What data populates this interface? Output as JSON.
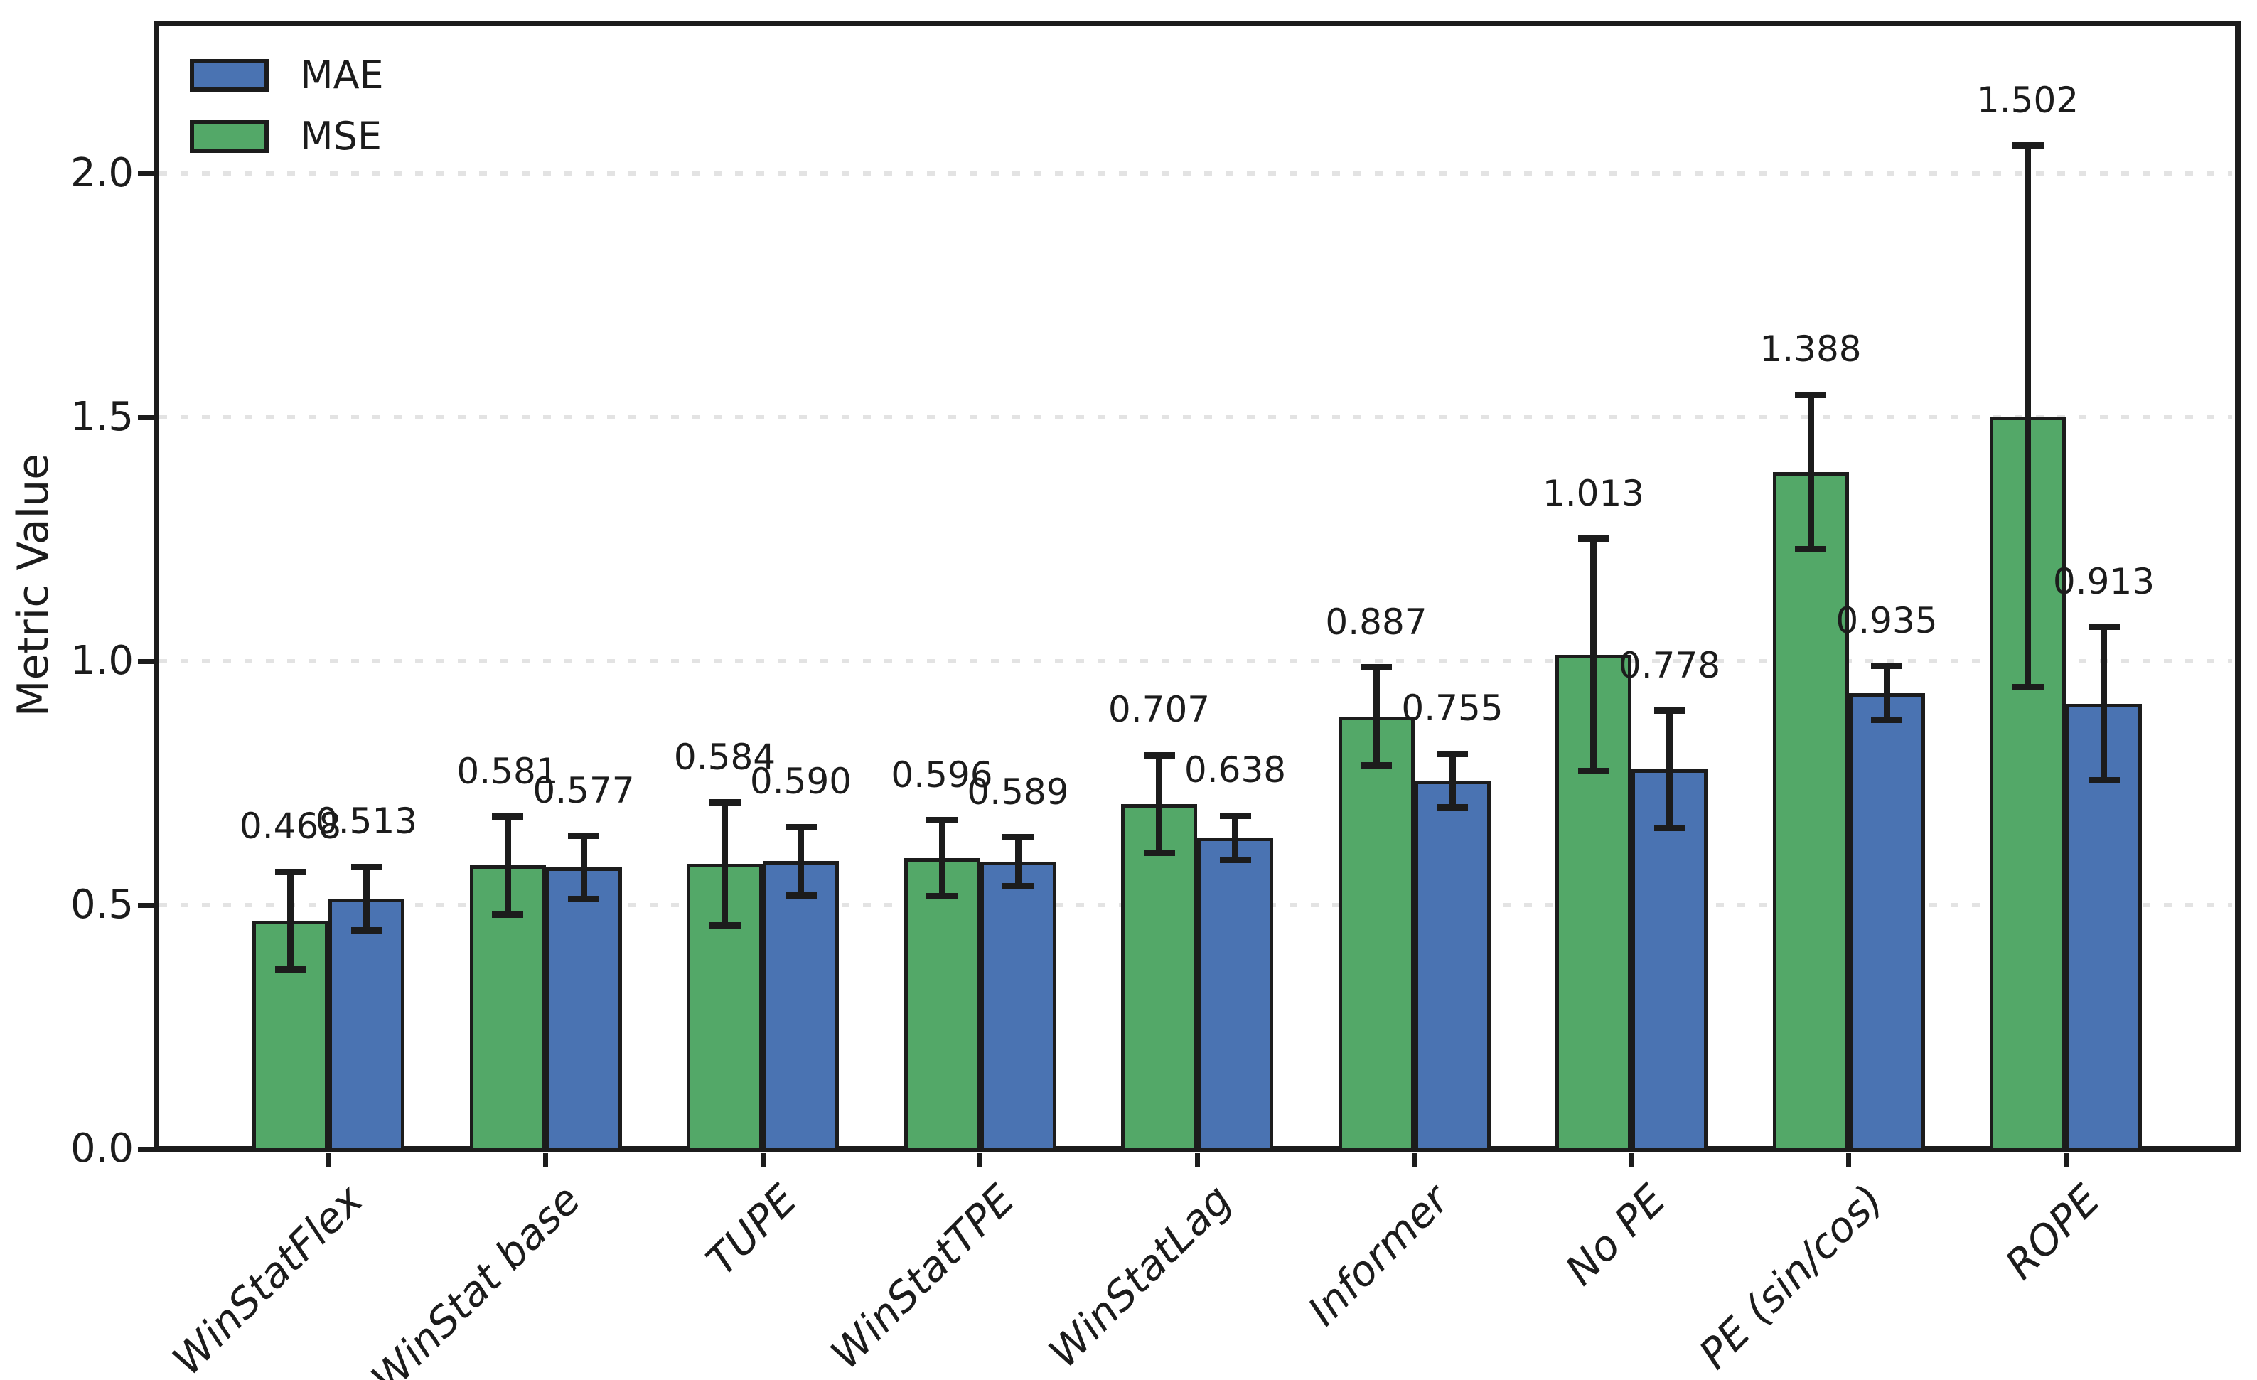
{
  "figure": {
    "y_axis_title": "Metric Value",
    "legend": [
      {
        "label": "MAE",
        "color": "#4a73b2"
      },
      {
        "label": "MSE",
        "color": "#53a868"
      }
    ]
  },
  "chart_data": {
    "type": "bar",
    "title": "",
    "xlabel": "",
    "ylabel": "Metric Value",
    "categories": [
      "WinStatFlex",
      "WinStat base",
      "TUPE",
      "WinStatTPE",
      "WinStatLag",
      "Informer",
      "No PE",
      "PE (sin/cos)",
      "ROPE"
    ],
    "series": [
      {
        "name": "MSE",
        "color": "#53a868",
        "values": [
          0.468,
          0.581,
          0.584,
          0.596,
          0.707,
          0.887,
          1.013,
          1.388,
          1.502
        ],
        "errors": [
          0.1,
          0.1,
          0.126,
          0.078,
          0.1,
          0.1,
          0.238,
          0.158,
          0.555
        ]
      },
      {
        "name": "MAE",
        "color": "#4a73b2",
        "values": [
          0.513,
          0.577,
          0.59,
          0.589,
          0.638,
          0.755,
          0.778,
          0.935,
          0.913
        ],
        "errors": [
          0.065,
          0.065,
          0.07,
          0.05,
          0.045,
          0.055,
          0.12,
          0.055,
          0.157
        ]
      }
    ],
    "bar_order_within_group": [
      "MSE",
      "MAE"
    ],
    "legend_order": [
      "MAE",
      "MSE"
    ],
    "value_labels": {
      "MSE": [
        "0.468",
        "0.581",
        "0.584",
        "0.596",
        "0.707",
        "0.887",
        "1.013",
        "1.388",
        "1.502"
      ],
      "MAE": [
        "0.513",
        "0.577",
        "0.590",
        "0.589",
        "0.638",
        "0.755",
        "0.778",
        "0.935",
        "0.913"
      ]
    },
    "yticks": [
      0.0,
      0.5,
      1.0,
      1.5,
      2.0
    ],
    "ytick_labels": [
      "0.0",
      "0.5",
      "1.0",
      "1.5",
      "2.0"
    ],
    "ylim": [
      0.0,
      2.31
    ],
    "grid": {
      "axis": "y",
      "style": "dotted",
      "color": "#e3e3e3"
    },
    "bar_edge_color": "#1c1c1c",
    "error_bar_color": "#1c1c1c",
    "legend_position": "upper-left",
    "x_tick_label_rotation_deg": 45,
    "x_tick_label_style": "italic"
  }
}
